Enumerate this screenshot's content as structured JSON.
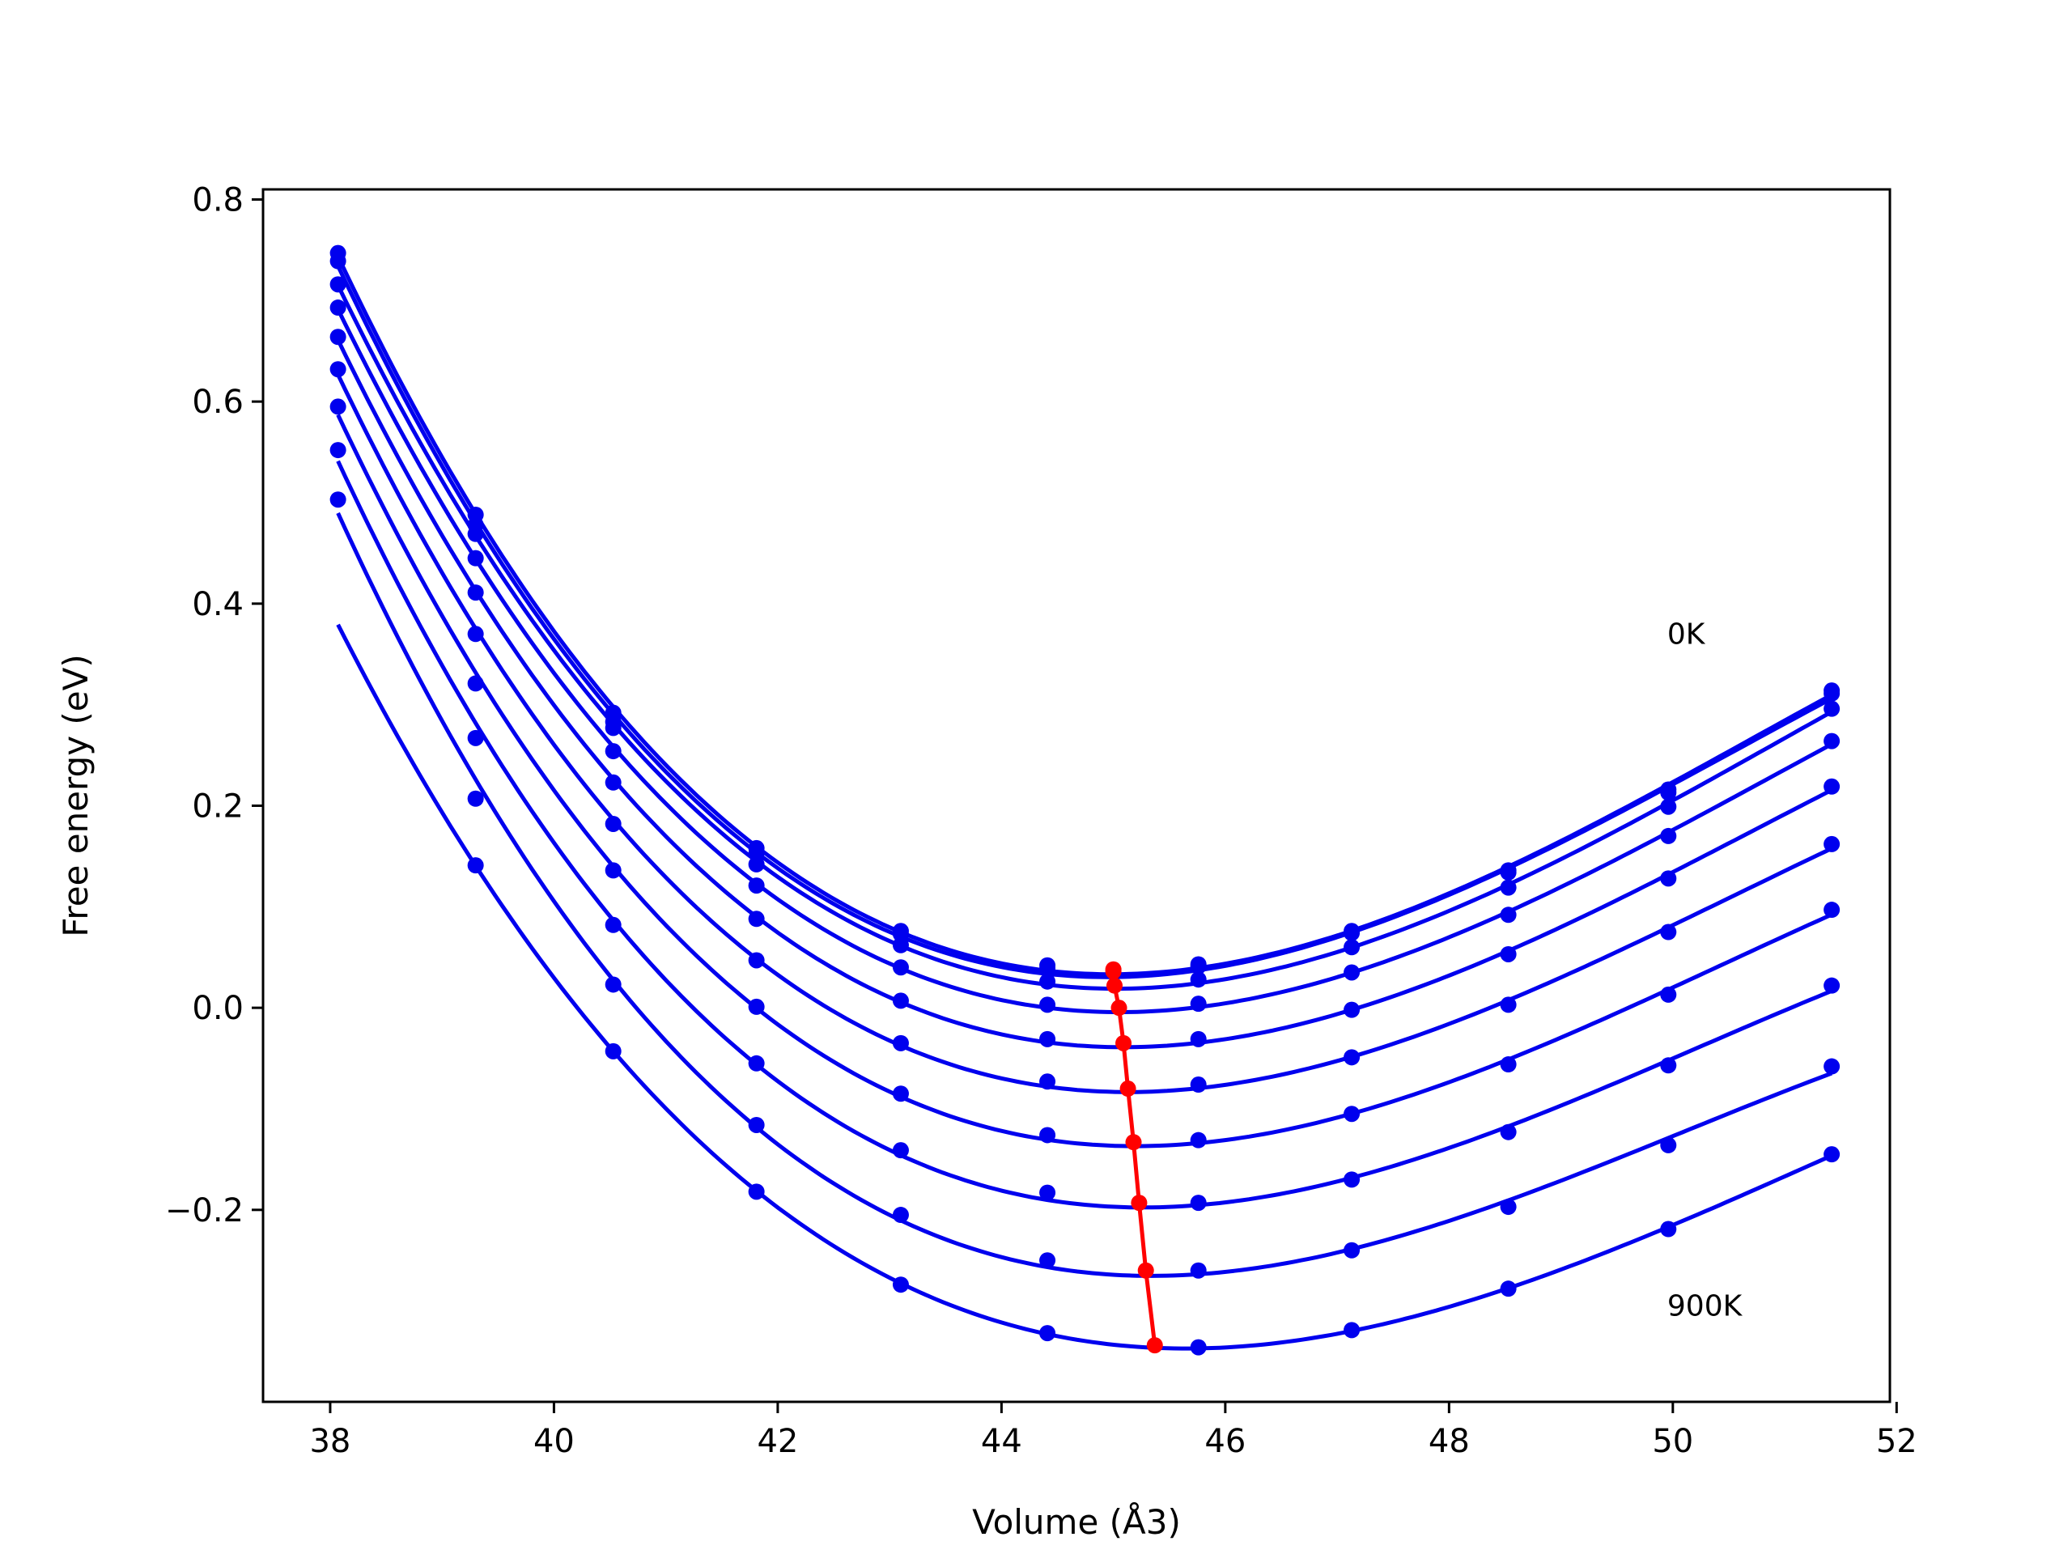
{
  "chart_data": {
    "type": "scatter",
    "xlabel": "Volume (Å3)",
    "ylabel": "Free energy (eV)",
    "xlim": [
      37.4,
      51.94
    ],
    "ylim": [
      -0.39,
      0.81
    ],
    "x_ticks": [
      "38",
      "40",
      "42",
      "44",
      "46",
      "48",
      "50",
      "52"
    ],
    "x_tick_values": [
      38,
      40,
      42,
      44,
      46,
      48,
      50,
      52
    ],
    "y_ticks": [
      "0.8",
      "0.6",
      "0.4",
      "0.2",
      "0.0",
      "−0.2"
    ],
    "y_tick_values": [
      0.8,
      0.6,
      0.4,
      0.2,
      0.0,
      -0.2
    ],
    "annotations": [
      {
        "text": "0K",
        "x": 49.95,
        "y": 0.37
      },
      {
        "text": "900K",
        "x": 49.95,
        "y": -0.295
      }
    ],
    "volumes": [
      38.07,
      39.3,
      40.53,
      41.81,
      43.1,
      44.41,
      45.76,
      47.13,
      48.53,
      49.96,
      51.42
    ],
    "series": [
      {
        "temperature_index": 0,
        "color": "#0000ee",
        "points": [
          0.747,
          0.488,
          0.292,
          0.158,
          0.076,
          0.042,
          0.043,
          0.076,
          0.136,
          0.216,
          0.314
        ],
        "fit_min_volume": 45.0,
        "fit_min_energy": 0.038
      },
      {
        "temperature_index": 1,
        "color": "#0000ee",
        "points": [
          0.739,
          0.478,
          0.283,
          0.153,
          0.073,
          0.039,
          0.041,
          0.074,
          0.134,
          0.213,
          0.311
        ],
        "fit_min_volume": 45.0,
        "fit_min_energy": 0.036
      },
      {
        "temperature_index": 2,
        "color": "#0000ee",
        "points": [
          0.716,
          0.469,
          0.277,
          0.142,
          0.062,
          0.026,
          0.028,
          0.06,
          0.119,
          0.199,
          0.296
        ],
        "fit_min_volume": 45.01,
        "fit_min_energy": 0.022
      },
      {
        "temperature_index": 3,
        "color": "#0000ee",
        "points": [
          0.693,
          0.445,
          0.254,
          0.121,
          0.04,
          0.003,
          0.004,
          0.035,
          0.092,
          0.17,
          0.264
        ],
        "fit_min_volume": 45.05,
        "fit_min_energy": 0.0
      },
      {
        "temperature_index": 4,
        "color": "#0000ee",
        "points": [
          0.664,
          0.411,
          0.223,
          0.088,
          0.007,
          -0.031,
          -0.031,
          -0.002,
          0.053,
          0.128,
          0.219
        ],
        "fit_min_volume": 45.09,
        "fit_min_energy": -0.035
      },
      {
        "temperature_index": 5,
        "color": "#0000ee",
        "points": [
          0.632,
          0.37,
          0.182,
          0.047,
          -0.035,
          -0.073,
          -0.076,
          -0.049,
          0.003,
          0.075,
          0.162
        ],
        "fit_min_volume": 45.13,
        "fit_min_energy": -0.08
      },
      {
        "temperature_index": 6,
        "color": "#0000ee",
        "points": [
          0.595,
          0.321,
          0.136,
          0.001,
          -0.085,
          -0.126,
          -0.131,
          -0.105,
          -0.056,
          0.013,
          0.097
        ],
        "fit_min_volume": 45.18,
        "fit_min_energy": -0.133
      },
      {
        "temperature_index": 7,
        "color": "#0000ee",
        "points": [
          0.552,
          0.267,
          0.082,
          -0.055,
          -0.141,
          -0.183,
          -0.193,
          -0.17,
          -0.123,
          -0.057,
          0.022
        ],
        "fit_min_volume": 45.23,
        "fit_min_energy": -0.193
      },
      {
        "temperature_index": 8,
        "color": "#0000ee",
        "points": [
          0.503,
          0.207,
          0.023,
          -0.116,
          -0.205,
          -0.25,
          -0.26,
          -0.24,
          -0.197,
          -0.136,
          -0.058
        ],
        "fit_min_volume": 45.29,
        "fit_min_energy": -0.26
      },
      {
        "temperature_index": 9,
        "color": "#0000ee",
        "points": [
          null,
          0.141,
          -0.043,
          -0.182,
          -0.274,
          -0.322,
          -0.336,
          -0.319,
          -0.278,
          -0.219,
          -0.145
        ],
        "fit_min_volume": 45.37,
        "fit_min_energy": -0.334
      }
    ],
    "minima_line": {
      "color": "#ff0000",
      "points": [
        [
          45.0,
          0.038
        ],
        [
          45.0,
          0.036
        ],
        [
          45.01,
          0.022
        ],
        [
          45.05,
          0.0
        ],
        [
          45.09,
          -0.035
        ],
        [
          45.13,
          -0.08
        ],
        [
          45.18,
          -0.133
        ],
        [
          45.23,
          -0.193
        ],
        [
          45.29,
          -0.26
        ],
        [
          45.37,
          -0.334
        ]
      ]
    }
  }
}
